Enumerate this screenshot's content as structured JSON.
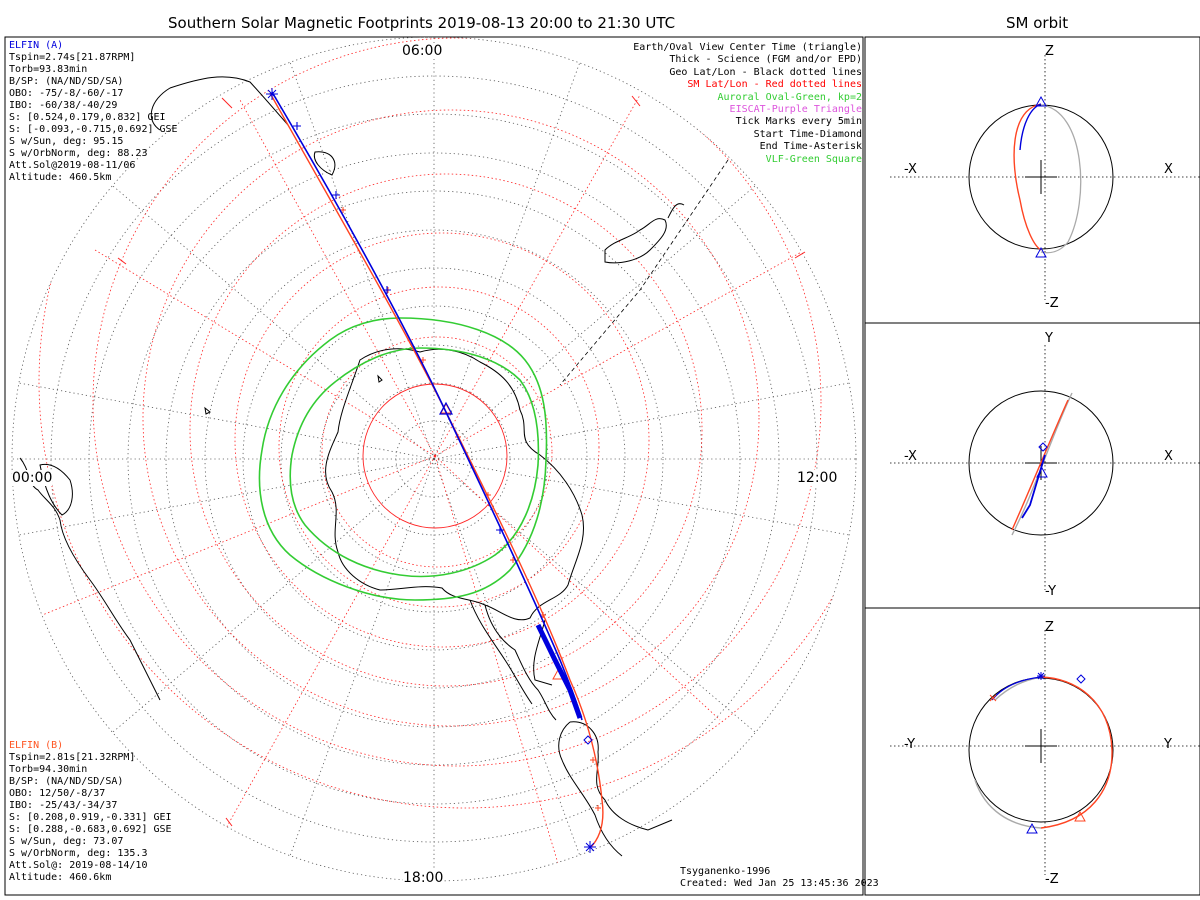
{
  "main": {
    "title": "Southern Solar Magnetic Footprints 2019-08-13 20:00 to 21:30 UTC",
    "hour_labels": {
      "top": "06:00",
      "left": "00:00",
      "right": "12:00",
      "bottom": "18:00"
    },
    "credit": [
      "Tsyganenko-1996",
      "Created: Wed Jan 25 13:45:36 2023"
    ]
  },
  "elfin_a": {
    "name": "ELFIN (A)",
    "color": "#0000dd",
    "lines": [
      "Tspin=2.74s[21.87RPM]",
      "Torb=93.83min",
      "B/SP: (NA/ND/SD/SA)",
      "OBO: -75/-8/-60/-17",
      "IBO: -60/38/-40/29",
      "S: [0.524,0.179,0.832] GEI",
      "S: [-0.093,-0.715,0.692] GSE",
      "S w/Sun, deg: 95.15",
      "S w/OrbNorm, deg: 88.23",
      "Att.Sol@2019-08-11/06",
      "Altitude: 460.5km"
    ]
  },
  "elfin_b": {
    "name": "ELFIN (B)",
    "color": "#ff5522",
    "lines": [
      "Tspin=2.81s[21.32RPM]",
      "Torb=94.30min",
      "B/SP: (NA/ND/SD/SA)",
      "OBO: 12/50/-8/37",
      "IBO: -25/43/-34/37",
      "S: [0.208,0.919,-0.331] GEI",
      "S: [0.288,-0.683,0.692] GSE",
      "S w/Sun, deg: 73.07",
      "S w/OrbNorm, deg: 135.3",
      "Att.Sol@: 2019-08-14/10",
      "Altitude: 460.6km"
    ]
  },
  "legend": [
    {
      "text": "Earth/Oval View Center Time (triangle)",
      "color": "#000000"
    },
    {
      "text": "Thick - Science (FGM and/or EPD)",
      "color": "#000000"
    },
    {
      "text": "Geo Lat/Lon - Black dotted lines",
      "color": "#000000"
    },
    {
      "text": "SM Lat/Lon - Red dotted lines",
      "color": "#ff0000"
    },
    {
      "text": "Auroral Oval-Green, kp=2",
      "color": "#33cc33"
    },
    {
      "text": "EISCAT-Purple Triangle",
      "color": "#dd55dd"
    },
    {
      "text": "Tick Marks every 5min",
      "color": "#000000"
    },
    {
      "text": "Start Time-Diamond",
      "color": "#000000"
    },
    {
      "text": "End Time-Asterisk",
      "color": "#000000"
    },
    {
      "text": "VLF-Green Square",
      "color": "#33cc33"
    }
  ],
  "orbit": {
    "title": "SM orbit",
    "panels": [
      {
        "up": "Z",
        "down": "-Z",
        "left": "-X",
        "right": "X"
      },
      {
        "up": "Y",
        "down": "-Y",
        "left": "-X",
        "right": "X"
      },
      {
        "up": "Z",
        "down": "-Z",
        "left": "-Y",
        "right": "Y"
      }
    ]
  }
}
